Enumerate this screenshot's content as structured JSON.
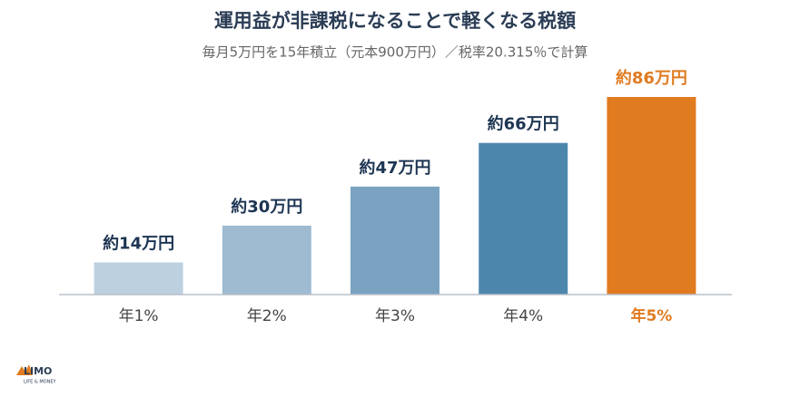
{
  "chart_data": {
    "type": "bar",
    "title": "運用益が非課税になることで軽くなる税額",
    "subtitle": "毎月5万円を15年積立（元本900万円）／税率20.315％で計算",
    "categories": [
      "年1%",
      "年2%",
      "年3%",
      "年4%",
      "年5%"
    ],
    "values": [
      14,
      30,
      47,
      66,
      86
    ],
    "value_labels": [
      "約14万円",
      "約30万円",
      "約47万円",
      "約66万円",
      "約86万円"
    ],
    "colors": [
      "#bcd0e0",
      "#9ebbd2",
      "#7aa3c1",
      "#4d86ad",
      "#e07b20"
    ]
  },
  "logo": {
    "name": "LIMO",
    "tagline": "LIFE & MONEY"
  }
}
